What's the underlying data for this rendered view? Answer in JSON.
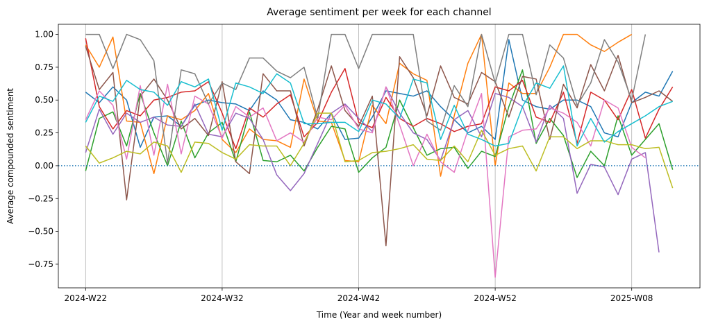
{
  "chart_data": {
    "type": "line",
    "title": "Average sentiment per week for each channel",
    "xlabel": "Time (Year and week number)",
    "ylabel": "Average compounded sentiment",
    "categories": [
      "2024-W22",
      null,
      null,
      null,
      null,
      null,
      null,
      null,
      null,
      null,
      "2024-W32",
      null,
      null,
      null,
      null,
      null,
      null,
      null,
      null,
      null,
      "2024-W42",
      null,
      null,
      null,
      null,
      null,
      null,
      null,
      null,
      null,
      "2024-W52",
      null,
      null,
      null,
      null,
      null,
      null,
      null,
      null,
      null,
      "2025-W08",
      null,
      null,
      null
    ],
    "ylim": [
      -0.93,
      1.077
    ],
    "yticks": [
      {
        "value": -0.75,
        "label": "−0.75"
      },
      {
        "value": -0.5,
        "label": "−0.50"
      },
      {
        "value": -0.25,
        "label": "−0.25"
      },
      {
        "value": 0,
        "label": "0.00"
      },
      {
        "value": 0.25,
        "label": "0.25"
      },
      {
        "value": 0.5,
        "label": "0.50"
      },
      {
        "value": 0.75,
        "label": "0.75"
      },
      {
        "value": 1,
        "label": "1.00"
      }
    ],
    "xgrid": true,
    "hline": 0,
    "hline_color": "#1f77b4",
    "series": [
      {
        "color": "#1f77b4",
        "values": [
          0.56,
          0.48,
          0.6,
          0.5,
          0.14,
          0.37,
          0.38,
          0.3,
          0.46,
          0.5,
          0.48,
          0.47,
          0.42,
          0.57,
          0.5,
          0.35,
          0.33,
          0.28,
          0.4,
          0.2,
          0.21,
          0.37,
          0.57,
          0.55,
          0.53,
          0.57,
          0.45,
          0.35,
          0.25,
          0.3,
          0.2,
          0.96,
          0.5,
          0.45,
          0.43,
          0.5,
          0.5,
          0.45,
          0.25,
          0.22,
          0.48,
          0.56,
          0.53,
          0.72
        ]
      },
      {
        "color": "#ff7f0e",
        "values": [
          0.92,
          0.75,
          0.98,
          0.34,
          0.33,
          -0.06,
          0.38,
          0.35,
          0.42,
          0.55,
          0.2,
          0.1,
          0.28,
          0.2,
          0.19,
          0.14,
          0.66,
          0.34,
          0.33,
          0.04,
          0.03,
          0.46,
          0.32,
          0.78,
          0.7,
          0.65,
          -0.08,
          0.38,
          0.78,
          1.0,
          0.0,
          0.63,
          0.55,
          0.55,
          0.75,
          1.0,
          1.0,
          0.92,
          0.87,
          0.94,
          1.0,
          null,
          null,
          null
        ]
      },
      {
        "color": "#2ca02c",
        "values": [
          -0.04,
          0.36,
          0.41,
          0.15,
          0.55,
          0.25,
          0.0,
          0.34,
          0.06,
          0.25,
          0.33,
          0.03,
          0.41,
          0.04,
          0.03,
          0.08,
          -0.04,
          0.14,
          0.3,
          0.28,
          -0.05,
          0.06,
          0.14,
          0.5,
          0.29,
          0.08,
          0.13,
          0.14,
          -0.02,
          0.11,
          0.07,
          0.45,
          0.73,
          0.17,
          0.36,
          0.23,
          -0.09,
          0.11,
          0.0,
          0.38,
          0.08,
          0.2,
          0.32,
          -0.03
        ]
      },
      {
        "color": "#d62728",
        "values": [
          0.97,
          0.45,
          0.28,
          0.42,
          0.38,
          0.5,
          0.52,
          0.56,
          0.57,
          0.64,
          0.4,
          0.13,
          0.44,
          0.37,
          0.47,
          0.54,
          0.22,
          0.33,
          0.56,
          0.74,
          0.33,
          0.29,
          0.52,
          0.36,
          0.3,
          0.36,
          0.32,
          0.26,
          0.3,
          0.32,
          0.6,
          0.57,
          0.65,
          0.37,
          0.33,
          0.56,
          0.17,
          0.56,
          0.5,
          0.35,
          0.58,
          0.21,
          0.43,
          0.6
        ]
      },
      {
        "color": "#9467bd",
        "values": [
          0.1,
          0.43,
          0.24,
          0.4,
          0.33,
          0.37,
          0.31,
          0.3,
          0.47,
          0.24,
          0.22,
          0.4,
          0.36,
          0.2,
          -0.07,
          -0.19,
          -0.06,
          0.17,
          0.4,
          0.47,
          0.36,
          0.26,
          0.6,
          0.4,
          0.25,
          0.2,
          0.04,
          0.35,
          0.42,
          0.22,
          0.55,
          0.52,
          0.45,
          0.18,
          0.46,
          0.36,
          -0.21,
          0.01,
          -0.01,
          -0.22,
          0.05,
          0.1,
          -0.66,
          null
        ]
      },
      {
        "color": "#8c564b",
        "values": [
          0.91,
          0.58,
          0.71,
          -0.26,
          0.53,
          0.66,
          0.5,
          0.28,
          0.36,
          0.23,
          0.64,
          0.03,
          -0.06,
          0.7,
          0.57,
          0.57,
          0.15,
          0.43,
          0.76,
          0.42,
          0.3,
          0.53,
          -0.61,
          0.83,
          0.67,
          0.38,
          0.76,
          0.52,
          0.47,
          0.71,
          0.64,
          0.37,
          0.68,
          0.66,
          0.2,
          0.62,
          0.44,
          0.77,
          0.57,
          0.84,
          0.48,
          0.52,
          0.57,
          0.49
        ]
      },
      {
        "color": "#e377c2",
        "values": [
          0.35,
          0.57,
          0.46,
          0.05,
          0.61,
          0.08,
          0.62,
          0.09,
          0.53,
          0.47,
          0.21,
          0.45,
          0.37,
          0.44,
          0.19,
          0.25,
          0.18,
          0.37,
          0.35,
          0.46,
          0.28,
          0.25,
          0.6,
          0.31,
          0.0,
          0.24,
          0.03,
          -0.05,
          0.27,
          0.55,
          -0.85,
          0.22,
          0.27,
          0.28,
          0.44,
          0.4,
          0.33,
          0.15,
          0.5,
          0.44,
          0.14,
          0.06,
          null,
          null
        ]
      },
      {
        "color": "#7f7f7f",
        "values": [
          1.0,
          1.0,
          0.74,
          1.0,
          0.96,
          0.8,
          0.02,
          0.73,
          0.7,
          0.47,
          0.63,
          0.58,
          0.82,
          0.82,
          0.72,
          0.67,
          0.75,
          0.36,
          1.0,
          1.0,
          0.74,
          1.0,
          1.0,
          1.0,
          1.0,
          0.34,
          0.27,
          0.61,
          0.45,
          1.0,
          0.63,
          1.0,
          1.0,
          0.54,
          0.92,
          0.82,
          0.46,
          0.63,
          0.96,
          0.79,
          0.5,
          1.0,
          null,
          null
        ]
      },
      {
        "color": "#bcbd22",
        "values": [
          0.15,
          0.02,
          0.06,
          0.11,
          0.09,
          0.18,
          0.15,
          -0.05,
          0.18,
          0.17,
          0.1,
          0.05,
          0.16,
          0.15,
          0.15,
          0.0,
          0.17,
          0.4,
          0.4,
          0.03,
          0.04,
          0.1,
          0.11,
          0.13,
          0.16,
          0.05,
          0.04,
          0.15,
          0.03,
          0.27,
          0.08,
          0.13,
          0.15,
          -0.04,
          0.22,
          0.22,
          0.13,
          0.19,
          0.19,
          0.16,
          0.16,
          0.13,
          0.14,
          -0.17
        ]
      },
      {
        "color": "#17becf",
        "values": [
          0.33,
          0.53,
          0.49,
          0.65,
          0.58,
          0.56,
          0.46,
          0.64,
          0.6,
          0.66,
          0.27,
          0.63,
          0.6,
          0.55,
          0.7,
          0.63,
          0.32,
          0.32,
          0.33,
          0.33,
          0.26,
          0.5,
          0.47,
          0.36,
          0.66,
          0.63,
          0.2,
          0.46,
          0.24,
          0.2,
          0.15,
          0.17,
          0.45,
          0.63,
          0.59,
          0.76,
          0.15,
          0.36,
          0.18,
          0.26,
          0.32,
          0.38,
          0.45,
          0.49
        ]
      }
    ]
  }
}
